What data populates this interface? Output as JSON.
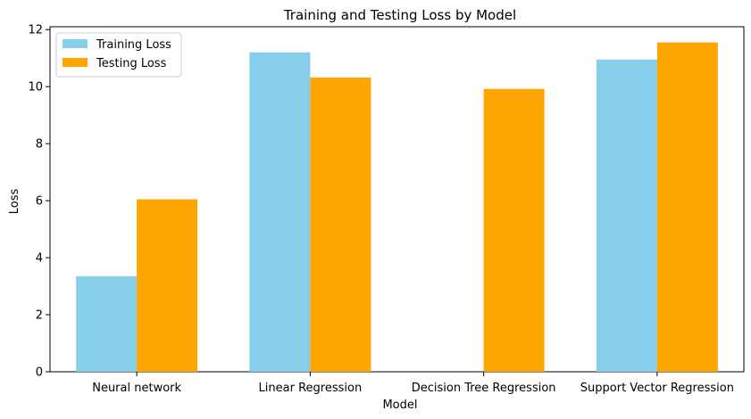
{
  "chart_data": {
    "type": "bar",
    "title": "Training and Testing Loss by Model",
    "xlabel": "Model",
    "ylabel": "Loss",
    "categories": [
      "Neural network",
      "Linear Regression",
      "Decision Tree Regression",
      "Support Vector Regression"
    ],
    "series": [
      {
        "name": "Training Loss",
        "color": "#87ceeb",
        "values": [
          3.35,
          11.2,
          0,
          10.95
        ]
      },
      {
        "name": "Testing Loss",
        "color": "#ffa500",
        "values": [
          6.05,
          10.32,
          9.92,
          11.55
        ]
      }
    ],
    "ylim": [
      0,
      12.1
    ],
    "yticks": [
      0,
      2,
      4,
      6,
      8,
      10,
      12
    ],
    "grid": false,
    "legend": "top-left"
  }
}
